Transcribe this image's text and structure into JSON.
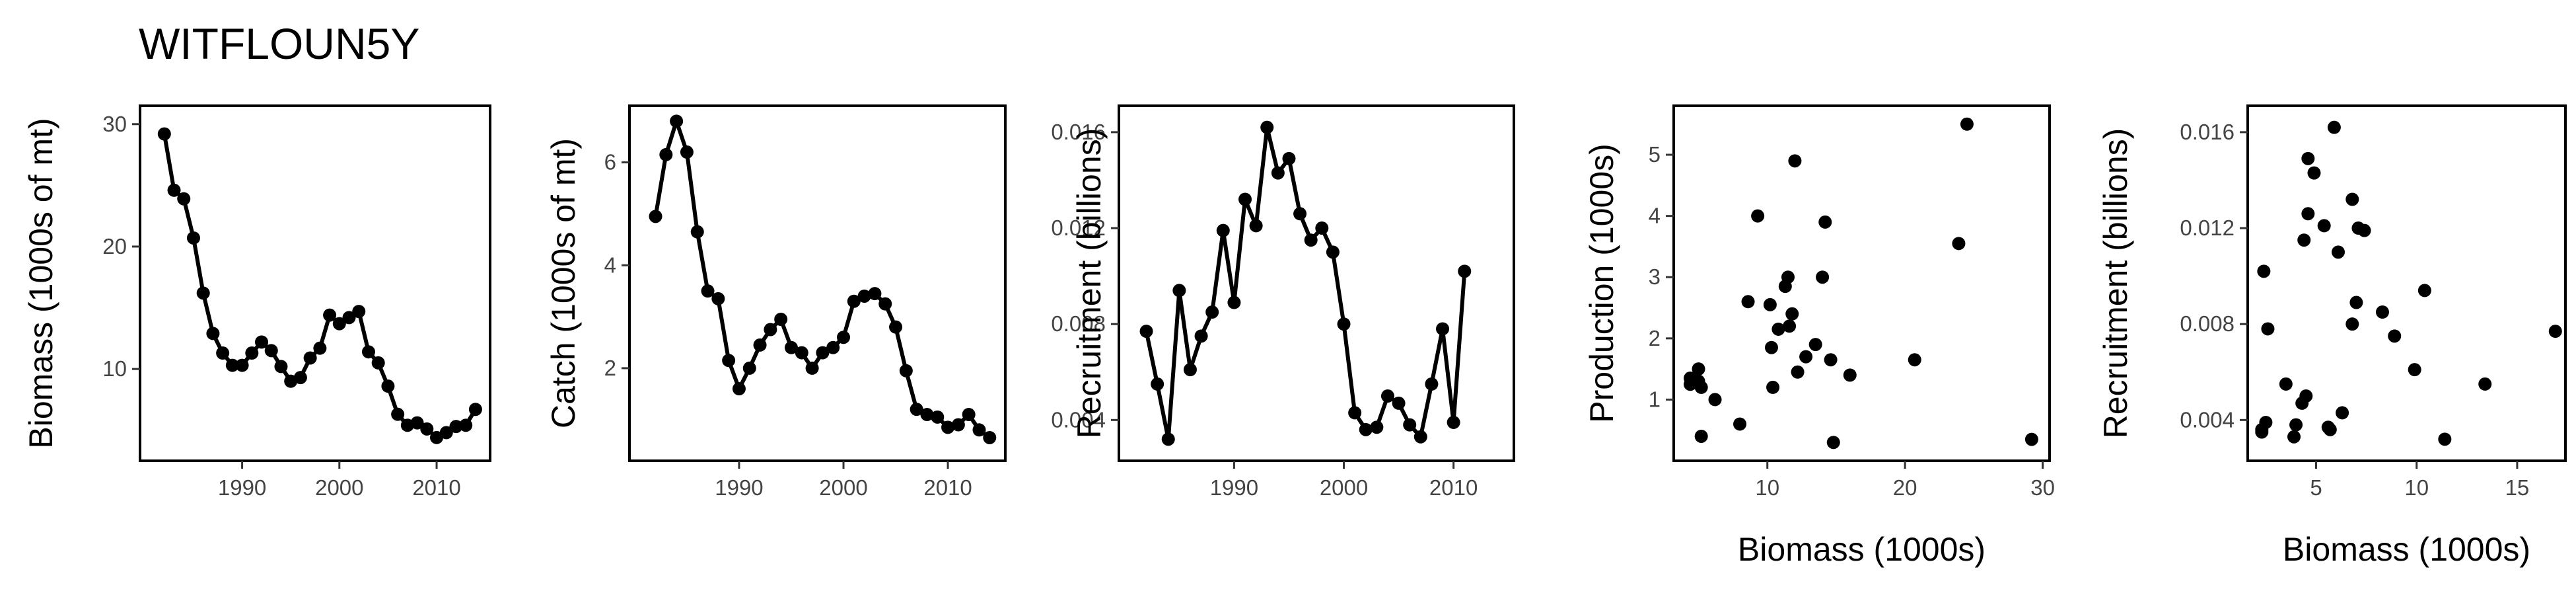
{
  "page": {
    "title": "WITFLOUN5Y"
  },
  "chart_data": [
    {
      "type": "line",
      "title": "",
      "xlabel": "",
      "ylabel": "Biomass (1000s of mt)",
      "xlim": [
        1979.5,
        2015.5
      ],
      "ylim": [
        2.5,
        31.5
      ],
      "xticks": [
        1990,
        2000,
        2010
      ],
      "yticks": [
        10,
        20,
        30
      ],
      "x": [
        1982,
        1983,
        1984,
        1985,
        1986,
        1987,
        1988,
        1989,
        1990,
        1991,
        1992,
        1993,
        1994,
        1995,
        1996,
        1997,
        1998,
        1999,
        2000,
        2001,
        2002,
        2003,
        2004,
        2005,
        2006,
        2007,
        2008,
        2009,
        2010,
        2011,
        2012,
        2013,
        2014
      ],
      "y": [
        29.2,
        24.6,
        23.9,
        20.7,
        16.2,
        12.9,
        11.3,
        10.3,
        10.3,
        11.3,
        12.2,
        11.5,
        10.2,
        9.0,
        9.3,
        10.9,
        11.7,
        14.4,
        13.7,
        14.2,
        14.7,
        11.4,
        10.5,
        8.6,
        6.3,
        5.4,
        5.6,
        5.1,
        4.4,
        4.8,
        5.3,
        5.4,
        6.7
      ],
      "markers": true
    },
    {
      "type": "line",
      "title": "",
      "xlabel": "",
      "ylabel": "Catch (1000s of mt)",
      "xlim": [
        1979.5,
        2015.5
      ],
      "ylim": [
        0.2,
        7.1
      ],
      "xticks": [
        1990,
        2000,
        2010
      ],
      "yticks": [
        2,
        4,
        6
      ],
      "x": [
        1982,
        1983,
        1984,
        1985,
        1986,
        1987,
        1988,
        1989,
        1990,
        1991,
        1992,
        1993,
        1994,
        1995,
        1996,
        1997,
        1998,
        1999,
        2000,
        2001,
        2002,
        2003,
        2004,
        2005,
        2006,
        2007,
        2008,
        2009,
        2010,
        2011,
        2012,
        2013,
        2014
      ],
      "y": [
        4.95,
        6.15,
        6.8,
        6.2,
        4.65,
        3.5,
        3.35,
        2.15,
        1.6,
        2.0,
        2.45,
        2.75,
        2.95,
        2.4,
        2.3,
        2.0,
        2.3,
        2.4,
        2.6,
        3.3,
        3.4,
        3.45,
        3.25,
        2.8,
        1.95,
        1.2,
        1.1,
        1.05,
        0.85,
        0.9,
        1.1,
        0.8,
        0.65
      ],
      "markers": true
    },
    {
      "type": "line",
      "title": "",
      "xlabel": "",
      "ylabel": "Recruitment (billions)",
      "xlim": [
        1979.5,
        2015.5
      ],
      "ylim": [
        0.0023,
        0.0171
      ],
      "xticks": [
        1990,
        2000,
        2010
      ],
      "yticks": [
        0.004,
        0.008,
        0.012,
        0.016
      ],
      "ytick_labels": [
        "0.004",
        "0.008",
        "0.012",
        "0.016"
      ],
      "x": [
        1982,
        1983,
        1984,
        1985,
        1986,
        1987,
        1988,
        1989,
        1990,
        1991,
        1992,
        1993,
        1994,
        1995,
        1996,
        1997,
        1998,
        1999,
        2000,
        2001,
        2002,
        2003,
        2004,
        2005,
        2006,
        2007,
        2008,
        2009,
        2010,
        2011
      ],
      "y": [
        0.0077,
        0.0055,
        0.0032,
        0.0094,
        0.0061,
        0.0075,
        0.0085,
        0.0119,
        0.0089,
        0.0132,
        0.0121,
        0.0162,
        0.0143,
        0.0149,
        0.0126,
        0.0115,
        0.012,
        0.011,
        0.008,
        0.0043,
        0.0036,
        0.0037,
        0.005,
        0.0047,
        0.0038,
        0.0033,
        0.0055,
        0.0078,
        0.0039,
        0.0102
      ],
      "markers": true
    },
    {
      "type": "scatter",
      "title": "",
      "xlabel": "Biomass (1000s)",
      "ylabel": "Production (1000s)",
      "xlim": [
        3.2,
        30.5
      ],
      "ylim": [
        0.0,
        5.8
      ],
      "xticks": [
        10,
        20,
        30
      ],
      "yticks": [
        1,
        2,
        3,
        4,
        5
      ],
      "x": [
        24.5,
        29.2,
        4.4,
        5.0,
        4.4,
        5.0,
        5.2,
        5.2,
        6.2,
        8.0,
        8.6,
        9.3,
        10.2,
        10.3,
        10.4,
        10.8,
        11.3,
        11.5,
        11.6,
        11.8,
        12.0,
        12.2,
        12.8,
        13.5,
        14.0,
        14.2,
        14.6,
        14.8,
        16.0,
        20.7,
        23.9
      ],
      "y": [
        5.5,
        0.35,
        1.25,
        1.5,
        1.35,
        1.3,
        1.2,
        0.4,
        1.0,
        0.6,
        2.6,
        4.0,
        2.55,
        1.85,
        1.2,
        2.15,
        2.85,
        3.0,
        2.2,
        2.4,
        4.9,
        1.45,
        1.7,
        1.9,
        3.0,
        3.9,
        1.65,
        0.3,
        1.4,
        1.65,
        3.55
      ],
      "markers": true
    },
    {
      "type": "scatter",
      "title": "",
      "xlabel": "Biomass (1000s)",
      "ylabel": "Recruitment (billions)",
      "xlim": [
        1.6,
        17.4
      ],
      "ylim": [
        0.0023,
        0.0171
      ],
      "xticks": [
        5,
        10,
        15
      ],
      "yticks": [
        0.004,
        0.008,
        0.012,
        0.016
      ],
      "ytick_labels": [
        "0.004",
        "0.008",
        "0.012",
        "0.016"
      ],
      "x": [
        16.9,
        13.4,
        11.4,
        10.4,
        9.9,
        8.9,
        8.3,
        7.4,
        7.1,
        7.0,
        6.8,
        6.8,
        6.3,
        6.1,
        5.9,
        5.7,
        5.6,
        5.4,
        4.9,
        4.6,
        4.6,
        4.5,
        4.4,
        4.3,
        4.0,
        3.9,
        3.5,
        2.6,
        2.5,
        2.4,
        2.3,
        2.3
      ],
      "y": [
        0.0077,
        0.0055,
        0.0032,
        0.0094,
        0.0061,
        0.0075,
        0.0085,
        0.0119,
        0.012,
        0.0089,
        0.0132,
        0.008,
        0.0043,
        0.011,
        0.0162,
        0.0036,
        0.0037,
        0.0121,
        0.0143,
        0.0149,
        0.0126,
        0.005,
        0.0115,
        0.0047,
        0.0038,
        0.0033,
        0.0055,
        0.0078,
        0.0039,
        0.0102,
        0.0036,
        0.0035
      ],
      "markers": true
    }
  ]
}
